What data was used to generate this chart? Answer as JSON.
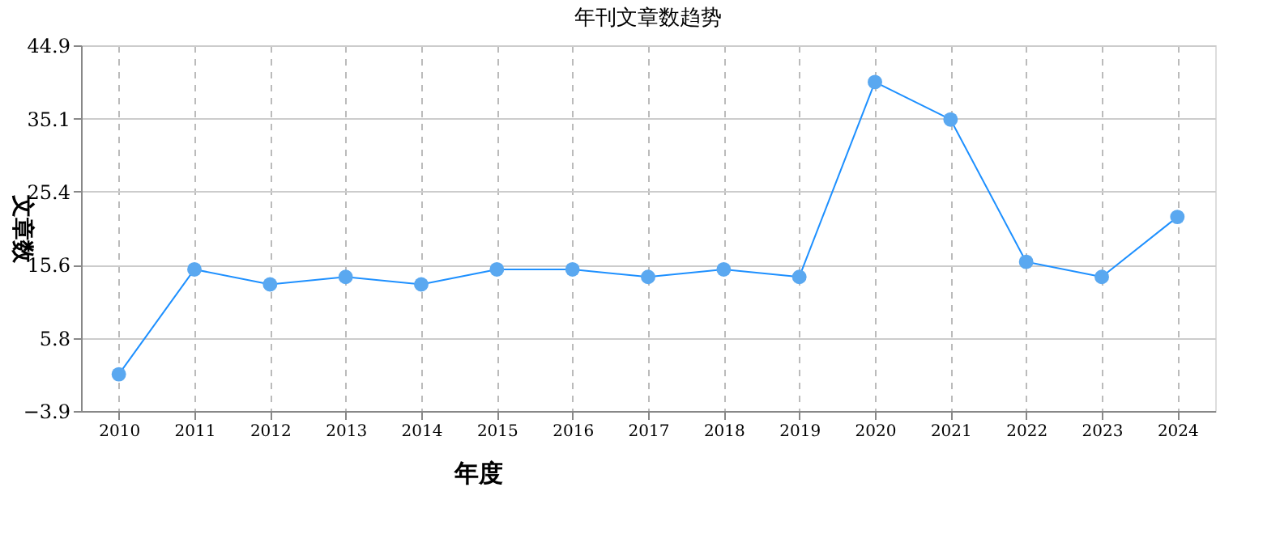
{
  "chart_data": {
    "type": "line",
    "title": "年刊文章数趋势",
    "xlabel": "年度",
    "ylabel": "文章数",
    "categories": [
      "2010",
      "2011",
      "2012",
      "2013",
      "2014",
      "2015",
      "2016",
      "2017",
      "2018",
      "2019",
      "2020",
      "2021",
      "2022",
      "2023",
      "2024"
    ],
    "series": [
      {
        "color": "#1e90ff",
        "values": [
          1,
          15,
          13,
          14,
          13,
          15,
          15,
          14,
          15,
          14,
          40,
          35,
          16,
          14,
          22
        ]
      }
    ],
    "ylim": [
      -3.9,
      44.9
    ],
    "yticks": [
      -3.9,
      5.8,
      15.6,
      25.4,
      35.1,
      44.9
    ],
    "grid": true,
    "marker": "circle",
    "line_style": "solid"
  }
}
